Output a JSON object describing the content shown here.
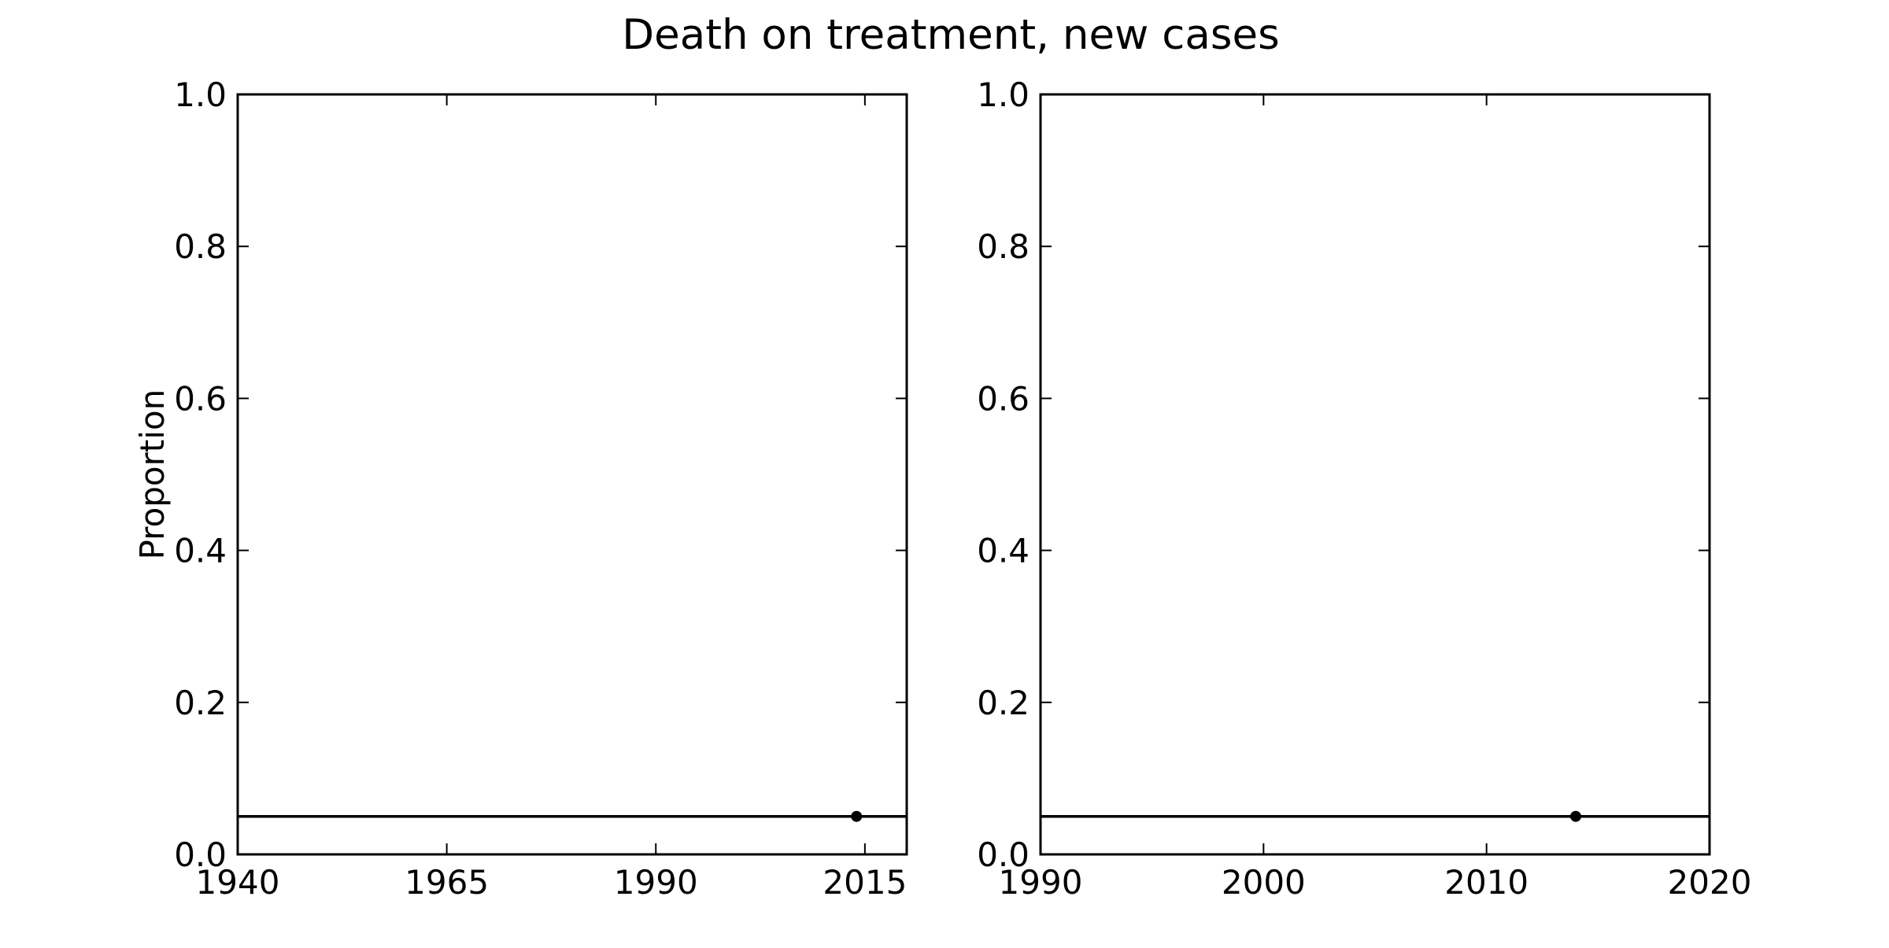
{
  "chart_data": [
    {
      "type": "line",
      "title": "Death on treatment, new cases",
      "ylabel": "Proportion",
      "xlabel": "",
      "xlim": [
        1940,
        2020
      ],
      "ylim": [
        0.0,
        1.0
      ],
      "xticks": [
        1940,
        1965,
        1990,
        2015
      ],
      "xtick_labels": [
        "1940",
        "1965",
        "1990",
        "2015"
      ],
      "yticks": [
        0.0,
        0.2,
        0.4,
        0.6,
        0.8,
        1.0
      ],
      "ytick_labels": [
        "0.0",
        "0.2",
        "0.4",
        "0.6",
        "0.8",
        "1.0"
      ],
      "series": [
        {
          "values": [
            {
              "x": 1940,
              "y": 0.05
            },
            {
              "x": 2020,
              "y": 0.05
            }
          ],
          "style": "line",
          "color": "#000000"
        },
        {
          "values": [
            {
              "x": 2014,
              "y": 0.05
            }
          ],
          "style": "marker",
          "color": "#000000"
        }
      ],
      "grid": false
    },
    {
      "type": "line",
      "title": "",
      "ylabel": "",
      "xlabel": "",
      "xlim": [
        1990,
        2020
      ],
      "ylim": [
        0.0,
        1.0
      ],
      "xticks": [
        1990,
        2000,
        2010,
        2020
      ],
      "xtick_labels": [
        "1990",
        "2000",
        "2010",
        "2020"
      ],
      "yticks": [
        0.0,
        0.2,
        0.4,
        0.6,
        0.8,
        1.0
      ],
      "ytick_labels": [
        "0.0",
        "0.2",
        "0.4",
        "0.6",
        "0.8",
        "1.0"
      ],
      "series": [
        {
          "values": [
            {
              "x": 1990,
              "y": 0.05
            },
            {
              "x": 2020,
              "y": 0.05
            }
          ],
          "style": "line",
          "color": "#000000"
        },
        {
          "values": [
            {
              "x": 2014,
              "y": 0.05
            }
          ],
          "style": "marker",
          "color": "#000000"
        }
      ],
      "grid": false
    }
  ]
}
